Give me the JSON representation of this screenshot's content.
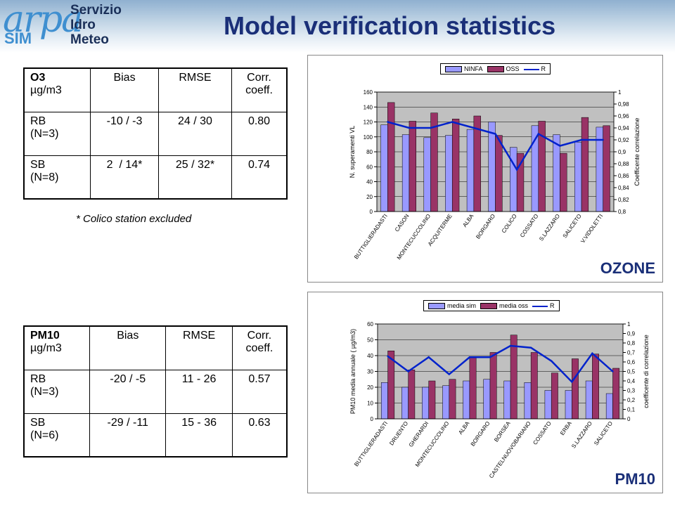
{
  "header": {
    "logo_text": "arpa",
    "logo_sub": "SIM",
    "service_lines": [
      "Servizio",
      "Idro",
      "Meteo"
    ],
    "title": "Model verification statistics"
  },
  "colors": {
    "title": "#1a2f78",
    "bar_model": "#9999ff",
    "bar_obs": "#993366",
    "line_r": "#0022cc",
    "plot_bg": "#c0c0c0"
  },
  "table_ozone": {
    "header": [
      "O3",
      "Bias",
      "RMSE",
      "Corr."
    ],
    "header2": [
      "µg/m3",
      "",
      "",
      "coeff."
    ],
    "rows": [
      [
        "RB\n(N=3)",
        "-10 / -3",
        "24 / 30",
        "0.80"
      ],
      [
        "SB\n(N=8)",
        "2  / 14*",
        "25 / 32*",
        "0.74"
      ]
    ],
    "note": "* Colico station excluded"
  },
  "table_pm10": {
    "header": [
      "PM10",
      "Bias",
      "RMSE",
      "Corr."
    ],
    "header2": [
      "µg/m3",
      "",
      "",
      "coeff."
    ],
    "rows": [
      [
        "RB\n(N=3)",
        "-20 / -5",
        "11 - 26",
        "0.57"
      ],
      [
        "SB\n(N=6)",
        "-29 / -11",
        "15 - 36",
        "0.63"
      ]
    ]
  },
  "chart_data": [
    {
      "type": "bar",
      "title": "",
      "label": "OZONE",
      "ylabel": "N. superamenti VL",
      "y2label": "Coefficente correlazione",
      "ylim": [
        0,
        160
      ],
      "y2lim": [
        0.8,
        1
      ],
      "yticks": [
        "0",
        "20",
        "40",
        "60",
        "80",
        "100",
        "120",
        "140",
        "160"
      ],
      "y2ticks": [
        "0,8",
        "0,82",
        "0,84",
        "0,86",
        "0,88",
        "0,9",
        "0,92",
        "0,94",
        "0,96",
        "0,98",
        "1"
      ],
      "categories": [
        "BUTTIGLIERADASTI",
        "CASON",
        "MONTECUCCOLINO",
        "ACQUITERME",
        "ALBA",
        "BORGARO",
        "COLICO",
        "COSSATO",
        "S.LAZZARO",
        "SALICETO",
        "V.VIDOLETTI"
      ],
      "series": [
        {
          "name": "NINFA",
          "values": [
            116,
            103,
            99,
            102,
            110,
            120,
            86,
            115,
            103,
            93,
            113
          ]
        },
        {
          "name": "OSS",
          "values": [
            146,
            121,
            132,
            124,
            128,
            102,
            78,
            121,
            78,
            126,
            115
          ]
        },
        {
          "name": "R",
          "axis": "secondary",
          "values": [
            0.95,
            0.94,
            0.94,
            0.95,
            0.94,
            0.93,
            0.87,
            0.93,
            0.91,
            0.92,
            0.92
          ]
        }
      ]
    },
    {
      "type": "bar",
      "title": "",
      "label": "PM10",
      "ylabel": "PM10 media annuale ( µg/m3)",
      "y2label": "coefficente di correlazione",
      "ylim": [
        0,
        60
      ],
      "y2lim": [
        0,
        1
      ],
      "yticks": [
        "0",
        "10",
        "20",
        "30",
        "40",
        "50",
        "60"
      ],
      "y2ticks": [
        "0",
        "0,1",
        "0,2",
        "0,3",
        "0,4",
        "0,5",
        "0,6",
        "0,7",
        "0,8",
        "0,9",
        "1"
      ],
      "categories": [
        "BUTTIGLIERADASTI",
        "DRUENTO",
        "GHERARDI",
        "MONTECUCCOLINO",
        "ALBA",
        "BORGARO",
        "BORSEA",
        "CASTELNUOVOBARIANO",
        "COSSATO",
        "ERBA",
        "S.LAZZARO",
        "SALICETO"
      ],
      "series": [
        {
          "name": "media sim",
          "values": [
            23,
            20,
            20,
            21,
            24,
            25,
            24,
            23,
            18,
            18,
            24,
            16
          ]
        },
        {
          "name": "media oss",
          "values": [
            43,
            31,
            24,
            25,
            39,
            42,
            53,
            42,
            29,
            38,
            41,
            32
          ]
        },
        {
          "name": "R",
          "axis": "secondary",
          "values": [
            0.66,
            0.5,
            0.65,
            0.47,
            0.65,
            0.65,
            0.77,
            0.75,
            0.61,
            0.39,
            0.69,
            0.5
          ]
        }
      ]
    }
  ]
}
